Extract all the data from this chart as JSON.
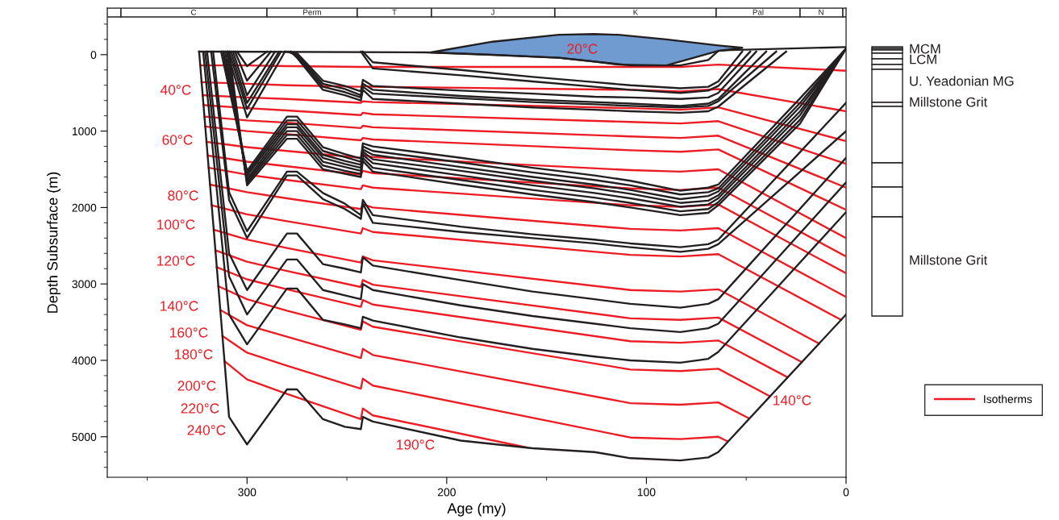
{
  "chart_data": {
    "type": "line",
    "xlabel": "Age (my)",
    "ylabel": "Depth Subsurface (m)",
    "xlim": [
      370,
      0
    ],
    "ylim": [
      5530,
      -610
    ],
    "xticks": [
      {
        "value": 350,
        "label": null
      },
      300,
      {
        "value": 250,
        "label": null
      },
      200,
      {
        "value": 150,
        "label": null
      },
      100,
      {
        "value": 50,
        "label": null
      },
      0
    ],
    "yticks": [
      {
        "value": -400,
        "label": null
      },
      {
        "value": -200,
        "label": null
      },
      0,
      {
        "value": 200,
        "label": null
      },
      {
        "value": 400,
        "label": null
      },
      {
        "value": 600,
        "label": null
      },
      {
        "value": 800,
        "label": null
      },
      1000,
      {
        "value": 1200,
        "label": null
      },
      {
        "value": 1400,
        "label": null
      },
      {
        "value": 1600,
        "label": null
      },
      {
        "value": 1800,
        "label": null
      },
      2000,
      {
        "value": 2200,
        "label": null
      },
      {
        "value": 2400,
        "label": null
      },
      {
        "value": 2600,
        "label": null
      },
      {
        "value": 2800,
        "label": null
      },
      3000,
      {
        "value": 3200,
        "label": null
      },
      {
        "value": 3400,
        "label": null
      },
      {
        "value": 3600,
        "label": null
      },
      {
        "value": 3800,
        "label": null
      },
      4000,
      {
        "value": 4200,
        "label": null
      },
      {
        "value": 4400,
        "label": null
      },
      {
        "value": 4600,
        "label": null
      },
      {
        "value": 4800,
        "label": null
      },
      5000,
      {
        "value": 5200,
        "label": null
      },
      {
        "value": 5400,
        "label": null
      }
    ],
    "grid": false,
    "legend": "bottom right",
    "line_style": "solid",
    "marker": "none",
    "annotations": [
      "20°C",
      "40°C",
      "60°C",
      "80°C",
      "100°C",
      "120°C",
      "140°C",
      "160°C",
      "180°C",
      "200°C",
      "220°C",
      "240°C",
      "190°C",
      "140°C",
      "MCM",
      "LCM",
      "U. Yeadonian MG",
      "Millstone Grit",
      "Millstone Grit",
      "C",
      "Perm",
      "T",
      "J",
      "K",
      "Pal",
      "N"
    ],
    "series": [
      {
        "type": "area",
        "color": "#6f9bd1",
        "x": [
          208,
          177,
          144,
          126,
          114,
          90,
          64,
          52,
          64,
          90,
          114,
          126,
          144,
          177
        ],
        "values": [
          -30,
          -170,
          -260,
          -270,
          -260,
          -200,
          -120,
          -90,
          -50,
          140,
          130,
          90,
          40,
          0
        ]
      },
      {
        "color": "#ed1c24",
        "name": "Isotherms",
        "x": [
          323.4,
          300,
          280,
          243,
          242,
          237,
          108,
          83,
          64,
          0
        ],
        "values": [
          140,
          140,
          150,
          160,
          160,
          160,
          160,
          160,
          130,
          210
        ]
      },
      {
        "color": "#ed1c24",
        "x": [
          322.8,
          300,
          280,
          243,
          242,
          237,
          108,
          83,
          64,
          0
        ],
        "values": [
          360,
          380,
          400,
          420,
          410,
          420,
          460,
          480,
          450,
          740
        ]
      },
      {
        "color": "#ed1c24",
        "x": [
          322.2,
          300,
          280,
          243,
          242,
          237,
          108,
          83,
          64,
          0
        ],
        "values": [
          530,
          560,
          580,
          630,
          610,
          620,
          700,
          720,
          690,
          1130
        ]
      },
      {
        "color": "#ed1c24",
        "x": [
          321.8,
          300,
          280,
          243,
          242,
          237,
          108,
          83,
          64,
          0
        ],
        "values": [
          660,
          700,
          730,
          790,
          760,
          780,
          880,
          900,
          870,
          1430
        ]
      },
      {
        "color": "#ed1c24",
        "x": [
          321.3,
          300,
          280,
          243,
          242,
          237,
          108,
          83,
          64,
          0
        ],
        "values": [
          810,
          860,
          890,
          960,
          930,
          950,
          1070,
          1090,
          1060,
          1740
        ]
      },
      {
        "color": "#ed1c24",
        "x": [
          320.9,
          300,
          280,
          243,
          242,
          237,
          108,
          83,
          64,
          0
        ],
        "values": [
          940,
          1000,
          1040,
          1120,
          1090,
          1110,
          1250,
          1270,
          1240,
          2030
        ]
      },
      {
        "color": "#ed1c24",
        "x": [
          320.3,
          300,
          280,
          243,
          242,
          237,
          108,
          83,
          64,
          0
        ],
        "values": [
          1140,
          1210,
          1260,
          1350,
          1310,
          1340,
          1510,
          1530,
          1500,
          2400
        ]
      },
      {
        "color": "#ed1c24",
        "x": [
          319.7,
          300,
          280,
          243,
          242,
          237,
          108,
          83,
          64,
          0
        ],
        "values": [
          1320,
          1400,
          1460,
          1570,
          1520,
          1550,
          1750,
          1770,
          1740,
          2640
        ]
      },
      {
        "color": "#ed1c24",
        "x": [
          319.2,
          300,
          280,
          243,
          242,
          237,
          108,
          83,
          64,
          0
        ],
        "values": [
          1480,
          1570,
          1640,
          1760,
          1710,
          1740,
          1970,
          1990,
          1960,
          2860
        ]
      },
      {
        "color": "#ed1c24",
        "x": [
          318.5,
          300,
          280,
          243,
          242,
          237,
          108,
          83,
          64,
          0
        ],
        "values": [
          1700,
          1800,
          1880,
          2020,
          1960,
          2000,
          2280,
          2300,
          2270,
          3170
        ]
      },
      {
        "color": "#ed1c24",
        "x": [
          317.7,
          300,
          280,
          243,
          242,
          237,
          108,
          83,
          64,
          2.5
        ],
        "values": [
          1970,
          2090,
          2180,
          2340,
          2270,
          2320,
          2620,
          2640,
          2610,
          3470
        ]
      },
      {
        "color": "#ed1c24",
        "x": [
          316.7,
          300,
          280,
          243,
          242,
          237,
          108,
          83,
          64,
          13.5
        ],
        "values": [
          2290,
          2420,
          2530,
          2720,
          2640,
          2690,
          3080,
          3100,
          3070,
          3780
        ]
      },
      {
        "color": "#ed1c24",
        "x": [
          315.9,
          300,
          280,
          243,
          242,
          237,
          108,
          83,
          64,
          22.3
        ],
        "values": [
          2560,
          2710,
          2830,
          3040,
          2950,
          3010,
          3450,
          3470,
          3440,
          4020
        ]
      },
      {
        "color": "#ed1c24",
        "x": [
          315.2,
          300,
          280,
          243,
          242,
          237,
          108,
          83,
          64,
          29.4
        ],
        "values": [
          2780,
          2940,
          3070,
          3300,
          3210,
          3270,
          3750,
          3770,
          3740,
          4220
        ]
      },
      {
        "color": "#ed1c24",
        "x": [
          314.4,
          300,
          280,
          243,
          242,
          237,
          108,
          83,
          64,
          38.2
        ],
        "values": [
          3030,
          3200,
          3350,
          3600,
          3490,
          3560,
          4120,
          4140,
          4110,
          4470
        ]
      },
      {
        "color": "#ed1c24",
        "x": [
          313.4,
          300,
          280,
          243,
          242,
          237,
          108,
          83,
          64,
          48.6
        ],
        "values": [
          3340,
          3540,
          3690,
          3970,
          3850,
          3930,
          4560,
          4580,
          4550,
          4760
        ]
      },
      {
        "color": "#ed1c24",
        "x": [
          312.3,
          300,
          280,
          243,
          242,
          237,
          108,
          83,
          64,
          59.3
        ],
        "values": [
          3680,
          3900,
          4070,
          4370,
          4240,
          4330,
          5010,
          5030,
          5000,
          5060
        ]
      },
      {
        "color": "#ed1c24",
        "x": [
          311.3,
          300,
          280,
          243,
          242,
          237,
          160
        ],
        "values": [
          4010,
          4250,
          4440,
          4770,
          4630,
          4720,
          5140
        ]
      },
      {
        "color": "#231f20",
        "x": [
          324,
          210,
          180,
          144,
          108,
          83,
          69,
          64,
          58,
          0
        ],
        "values": [
          -40,
          -30,
          0,
          40,
          140,
          140,
          70,
          -50,
          -60,
          -100
        ]
      },
      {
        "color": "#231f20",
        "x": [
          242,
          237,
          193,
          157,
          126,
          108,
          83,
          69,
          64,
          52
        ],
        "values": [
          -40,
          100,
          200,
          290,
          360,
          400,
          440,
          420,
          350,
          -40
        ]
      },
      {
        "color": "#231f20",
        "x": [
          243,
          237,
          193,
          157,
          126,
          108,
          83,
          69,
          64,
          48
        ],
        "values": [
          -40,
          180,
          270,
          350,
          420,
          460,
          500,
          470,
          410,
          -40
        ]
      },
      {
        "color": "#231f20",
        "x": [
          281,
          275,
          262,
          251,
          243,
          242,
          237,
          193,
          157,
          126,
          108,
          83,
          69,
          64,
          45
        ],
        "values": [
          -40,
          -20,
          340,
          410,
          480,
          330,
          410,
          470,
          510,
          550,
          560,
          580,
          560,
          500,
          -40
        ]
      },
      {
        "color": "#231f20",
        "x": [
          280,
          275,
          262,
          251,
          243,
          242,
          237,
          193,
          157,
          126,
          108,
          83,
          69,
          64,
          40
        ],
        "values": [
          -40,
          0,
          380,
          450,
          530,
          380,
          460,
          540,
          590,
          620,
          640,
          670,
          640,
          580,
          -40
        ]
      },
      {
        "color": "#231f20",
        "x": [
          279,
          275,
          262,
          251,
          243,
          242,
          237,
          193,
          157,
          126,
          108,
          83,
          69,
          64,
          35
        ],
        "values": [
          -40,
          20,
          420,
          490,
          560,
          420,
          510,
          570,
          620,
          650,
          670,
          690,
          670,
          610,
          -40
        ]
      },
      {
        "color": "#231f20",
        "x": [
          278,
          275,
          262,
          251,
          243,
          242,
          237,
          193,
          157,
          126,
          108,
          83,
          69,
          64,
          30
        ],
        "values": [
          -40,
          40,
          460,
          530,
          600,
          460,
          580,
          640,
          690,
          720,
          740,
          760,
          740,
          680,
          -40
        ]
      },
      {
        "color": "#231f20",
        "x": [
          305,
          300,
          290
        ],
        "values": [
          -40,
          150,
          -40
        ]
      },
      {
        "color": "#231f20",
        "x": [
          306,
          300,
          288
        ],
        "values": [
          -40,
          340,
          -40
        ]
      },
      {
        "color": "#231f20",
        "x": [
          307,
          300,
          286
        ],
        "values": [
          -40,
          530,
          -40
        ]
      },
      {
        "color": "#231f20",
        "x": [
          308,
          300,
          284
        ],
        "values": [
          -40,
          630,
          -40
        ]
      },
      {
        "color": "#231f20",
        "x": [
          309,
          300,
          283
        ],
        "values": [
          -40,
          710,
          -40
        ]
      },
      {
        "color": "#231f20",
        "x": [
          310,
          300,
          281
        ],
        "values": [
          -40,
          820,
          -40
        ]
      },
      {
        "color": "#231f20",
        "x": [
          313,
          300,
          280,
          275,
          262,
          251,
          243,
          242,
          237,
          193,
          157,
          126,
          108,
          83,
          69,
          64,
          23,
          0
        ],
        "values": [
          -40,
          1520,
          810,
          810,
          1210,
          1300,
          1360,
          1160,
          1200,
          1350,
          1480,
          1580,
          1650,
          1780,
          1740,
          1700,
          570,
          -80
        ]
      },
      {
        "color": "#231f20",
        "x": [
          312,
          300,
          280,
          275,
          262,
          251,
          243,
          242,
          237,
          193,
          157,
          126,
          108,
          83,
          69,
          64,
          23,
          0
        ],
        "values": [
          -40,
          1550,
          860,
          860,
          1260,
          1340,
          1400,
          1200,
          1260,
          1410,
          1540,
          1640,
          1710,
          1830,
          1800,
          1750,
          630,
          -80
        ]
      },
      {
        "color": "#231f20",
        "x": [
          312,
          300,
          280,
          275,
          262,
          251,
          243,
          242,
          237,
          193,
          157,
          126,
          108,
          83,
          69,
          64,
          23,
          0
        ],
        "values": [
          -40,
          1580,
          910,
          910,
          1310,
          1390,
          1440,
          1240,
          1310,
          1470,
          1600,
          1700,
          1770,
          1890,
          1850,
          1790,
          680,
          -80
        ]
      },
      {
        "color": "#231f20",
        "x": [
          311,
          300,
          280,
          275,
          262,
          251,
          243,
          242,
          237,
          193,
          157,
          126,
          108,
          83,
          69,
          64,
          23,
          0
        ],
        "values": [
          -40,
          1620,
          950,
          950,
          1350,
          1430,
          1480,
          1270,
          1370,
          1520,
          1650,
          1750,
          1820,
          1940,
          1910,
          1840,
          740,
          -80
        ]
      },
      {
        "color": "#231f20",
        "x": [
          310,
          300,
          280,
          275,
          262,
          251,
          243,
          242,
          237,
          193,
          157,
          126,
          108,
          83,
          69,
          64,
          23,
          0
        ],
        "values": [
          -40,
          1650,
          1000,
          1000,
          1400,
          1470,
          1520,
          1310,
          1420,
          1580,
          1710,
          1810,
          1880,
          1990,
          1960,
          1880,
          790,
          -80
        ]
      },
      {
        "color": "#231f20",
        "x": [
          310,
          300,
          280,
          275,
          262,
          251,
          243,
          242,
          237,
          193,
          157,
          126,
          108,
          83,
          69,
          64,
          23,
          0
        ],
        "values": [
          -40,
          1680,
          1050,
          1050,
          1450,
          1520,
          1560,
          1350,
          1480,
          1640,
          1770,
          1870,
          1940,
          2050,
          2020,
          1930,
          850,
          -80
        ]
      },
      {
        "color": "#231f20",
        "x": [
          309,
          300,
          280,
          275,
          262,
          251,
          243,
          242,
          237,
          193,
          157,
          126,
          108,
          83,
          69,
          64,
          23,
          0
        ],
        "values": [
          -40,
          1710,
          1100,
          1100,
          1500,
          1560,
          1600,
          1390,
          1530,
          1700,
          1830,
          1930,
          2000,
          2100,
          2070,
          1970,
          900,
          -80
        ]
      },
      {
        "color": "#231f20",
        "x": [
          317,
          309,
          300,
          280,
          275,
          262,
          251,
          243,
          242,
          237,
          193,
          157,
          126,
          108,
          83,
          69,
          64,
          0
        ],
        "values": [
          -40,
          1800,
          2310,
          1530,
          1530,
          1810,
          1950,
          2100,
          1900,
          2100,
          2250,
          2350,
          2420,
          2470,
          2520,
          2480,
          2420,
          630
        ]
      },
      {
        "color": "#231f20",
        "x": [
          318,
          309,
          300,
          280,
          275,
          262,
          251,
          243,
          242,
          237,
          193,
          157,
          126,
          108,
          83,
          69,
          64,
          0
        ],
        "values": [
          -40,
          1900,
          2400,
          1580,
          1580,
          1890,
          2020,
          2150,
          1950,
          2200,
          2320,
          2400,
          2470,
          2520,
          2580,
          2540,
          2480,
          1000
        ]
      },
      {
        "color": "#231f20",
        "x": [
          320,
          309,
          300,
          280,
          275,
          262,
          251,
          243,
          242,
          237,
          193,
          157,
          126,
          108,
          83,
          69,
          64,
          0
        ],
        "values": [
          -40,
          2600,
          3080,
          2340,
          2340,
          2740,
          2800,
          2850,
          2650,
          2760,
          2950,
          3100,
          3200,
          3260,
          3310,
          3260,
          3200,
          1350
        ]
      },
      {
        "color": "#231f20",
        "x": [
          321,
          309,
          300,
          280,
          275,
          262,
          251,
          243,
          242,
          237,
          193,
          157,
          126,
          108,
          83,
          69,
          64,
          0
        ],
        "values": [
          -40,
          2900,
          3400,
          2680,
          2680,
          3080,
          3150,
          3200,
          3000,
          3080,
          3280,
          3420,
          3520,
          3580,
          3630,
          3580,
          3520,
          1670
        ]
      },
      {
        "color": "#231f20",
        "x": [
          322,
          309,
          300,
          280,
          275,
          262,
          251,
          243,
          242,
          237,
          193,
          157,
          126,
          108,
          83,
          69,
          64,
          0
        ],
        "values": [
          -40,
          3400,
          3790,
          3060,
          3060,
          3470,
          3530,
          3580,
          3430,
          3480,
          3700,
          3850,
          3950,
          4000,
          4030,
          3980,
          3890,
          2060
        ]
      },
      {
        "color": "#231f20",
        "x": [
          324,
          309,
          300,
          280,
          275,
          262,
          251,
          243,
          242,
          237,
          193,
          157,
          126,
          108,
          83,
          69,
          64,
          0
        ],
        "values": [
          -40,
          4740,
          5100,
          4380,
          4380,
          4770,
          4870,
          4900,
          4740,
          4800,
          5050,
          5150,
          5200,
          5280,
          5310,
          5270,
          5200,
          3400
        ]
      }
    ]
  }
}
